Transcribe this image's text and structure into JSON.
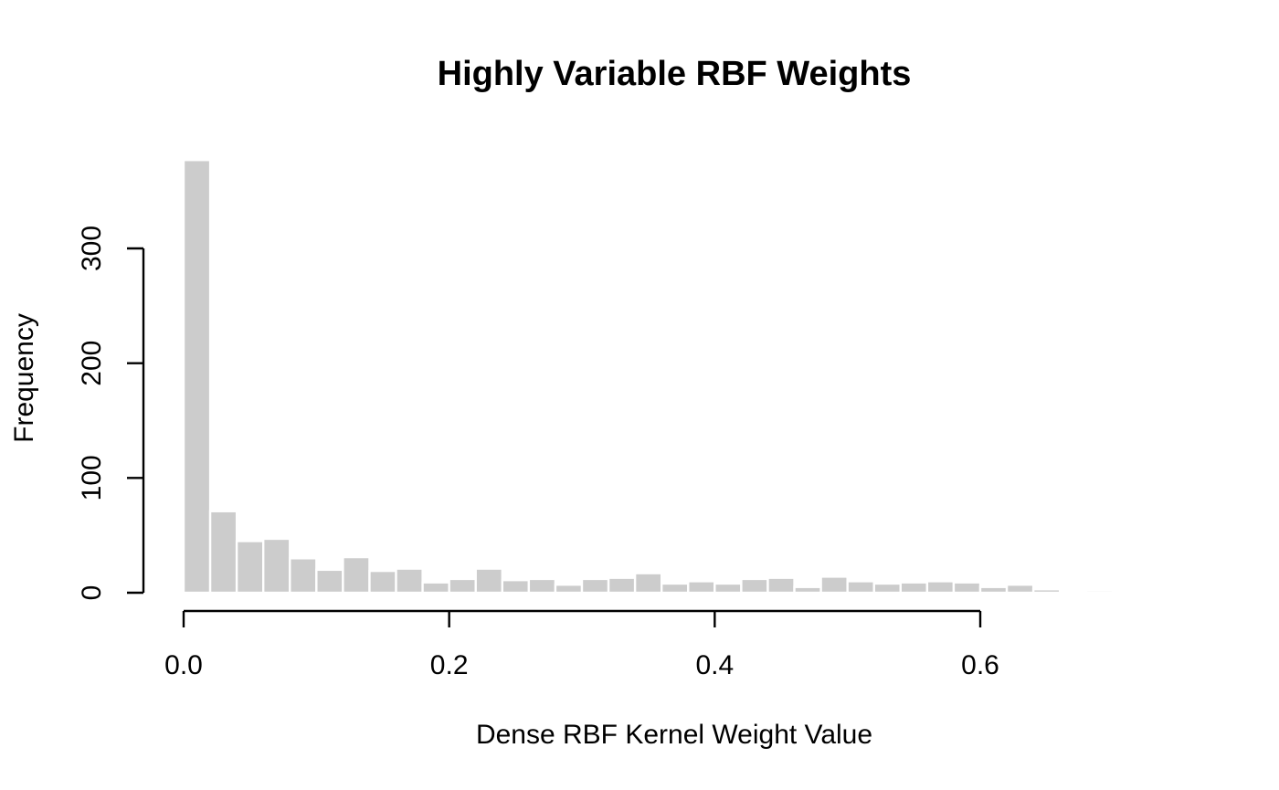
{
  "chart_data": {
    "type": "bar",
    "title": "Highly Variable RBF Weights",
    "xlabel": "Dense RBF Kernel Weight Value",
    "ylabel": "Frequency",
    "x_ticks": [
      0.0,
      0.2,
      0.4,
      0.6
    ],
    "x_tick_labels": [
      "0.0",
      "0.2",
      "0.4",
      "0.6"
    ],
    "y_ticks": [
      0,
      100,
      200,
      300
    ],
    "y_tick_labels": [
      "0",
      "100",
      "200",
      "300"
    ],
    "xlim": [
      0.0,
      0.72
    ],
    "ylim": [
      0,
      377
    ],
    "grid": false,
    "bin_width": 0.02,
    "bins": [
      {
        "x0": 0.0,
        "x1": 0.02,
        "count": 377
      },
      {
        "x0": 0.02,
        "count": 71,
        "x1": 0.04
      },
      {
        "x0": 0.04,
        "x1": 0.06,
        "count": 45
      },
      {
        "x0": 0.06,
        "x1": 0.08,
        "count": 47
      },
      {
        "x0": 0.08,
        "x1": 0.1,
        "count": 30
      },
      {
        "x0": 0.1,
        "x1": 0.12,
        "count": 20
      },
      {
        "x0": 0.12,
        "x1": 0.14,
        "count": 31
      },
      {
        "x0": 0.14,
        "x1": 0.16,
        "count": 19
      },
      {
        "x0": 0.16,
        "x1": 0.18,
        "count": 21
      },
      {
        "x0": 0.18,
        "x1": 0.2,
        "count": 9
      },
      {
        "x0": 0.2,
        "x1": 0.22,
        "count": 12
      },
      {
        "x0": 0.22,
        "x1": 0.24,
        "count": 21
      },
      {
        "x0": 0.24,
        "x1": 0.26,
        "count": 11
      },
      {
        "x0": 0.26,
        "x1": 0.28,
        "count": 12
      },
      {
        "x0": 0.28,
        "x1": 0.3,
        "count": 7
      },
      {
        "x0": 0.3,
        "x1": 0.32,
        "count": 12
      },
      {
        "x0": 0.32,
        "x1": 0.34,
        "count": 13
      },
      {
        "x0": 0.34,
        "x1": 0.36,
        "count": 17
      },
      {
        "x0": 0.36,
        "x1": 0.38,
        "count": 8
      },
      {
        "x0": 0.38,
        "x1": 0.4,
        "count": 10
      },
      {
        "x0": 0.4,
        "x1": 0.42,
        "count": 8
      },
      {
        "x0": 0.42,
        "x1": 0.44,
        "count": 12
      },
      {
        "x0": 0.44,
        "x1": 0.46,
        "count": 13
      },
      {
        "x0": 0.46,
        "x1": 0.48,
        "count": 5
      },
      {
        "x0": 0.48,
        "x1": 0.5,
        "count": 14
      },
      {
        "x0": 0.5,
        "x1": 0.52,
        "count": 10
      },
      {
        "x0": 0.52,
        "x1": 0.54,
        "count": 8
      },
      {
        "x0": 0.54,
        "x1": 0.56,
        "count": 9
      },
      {
        "x0": 0.56,
        "x1": 0.58,
        "count": 10
      },
      {
        "x0": 0.58,
        "x1": 0.6,
        "count": 9
      },
      {
        "x0": 0.6,
        "x1": 0.62,
        "count": 5
      },
      {
        "x0": 0.62,
        "x1": 0.64,
        "count": 7
      },
      {
        "x0": 0.64,
        "x1": 0.66,
        "count": 3
      },
      {
        "x0": 0.66,
        "x1": 0.68,
        "count": 1
      },
      {
        "x0": 0.68,
        "x1": 0.7,
        "count": 2
      },
      {
        "x0": 0.7,
        "x1": 0.72,
        "count": 1
      }
    ],
    "colors": {
      "bar_fill": "#cccccc",
      "bar_border": "#ffffff",
      "axis": "#000000",
      "text": "#000000",
      "background": "#ffffff"
    }
  }
}
